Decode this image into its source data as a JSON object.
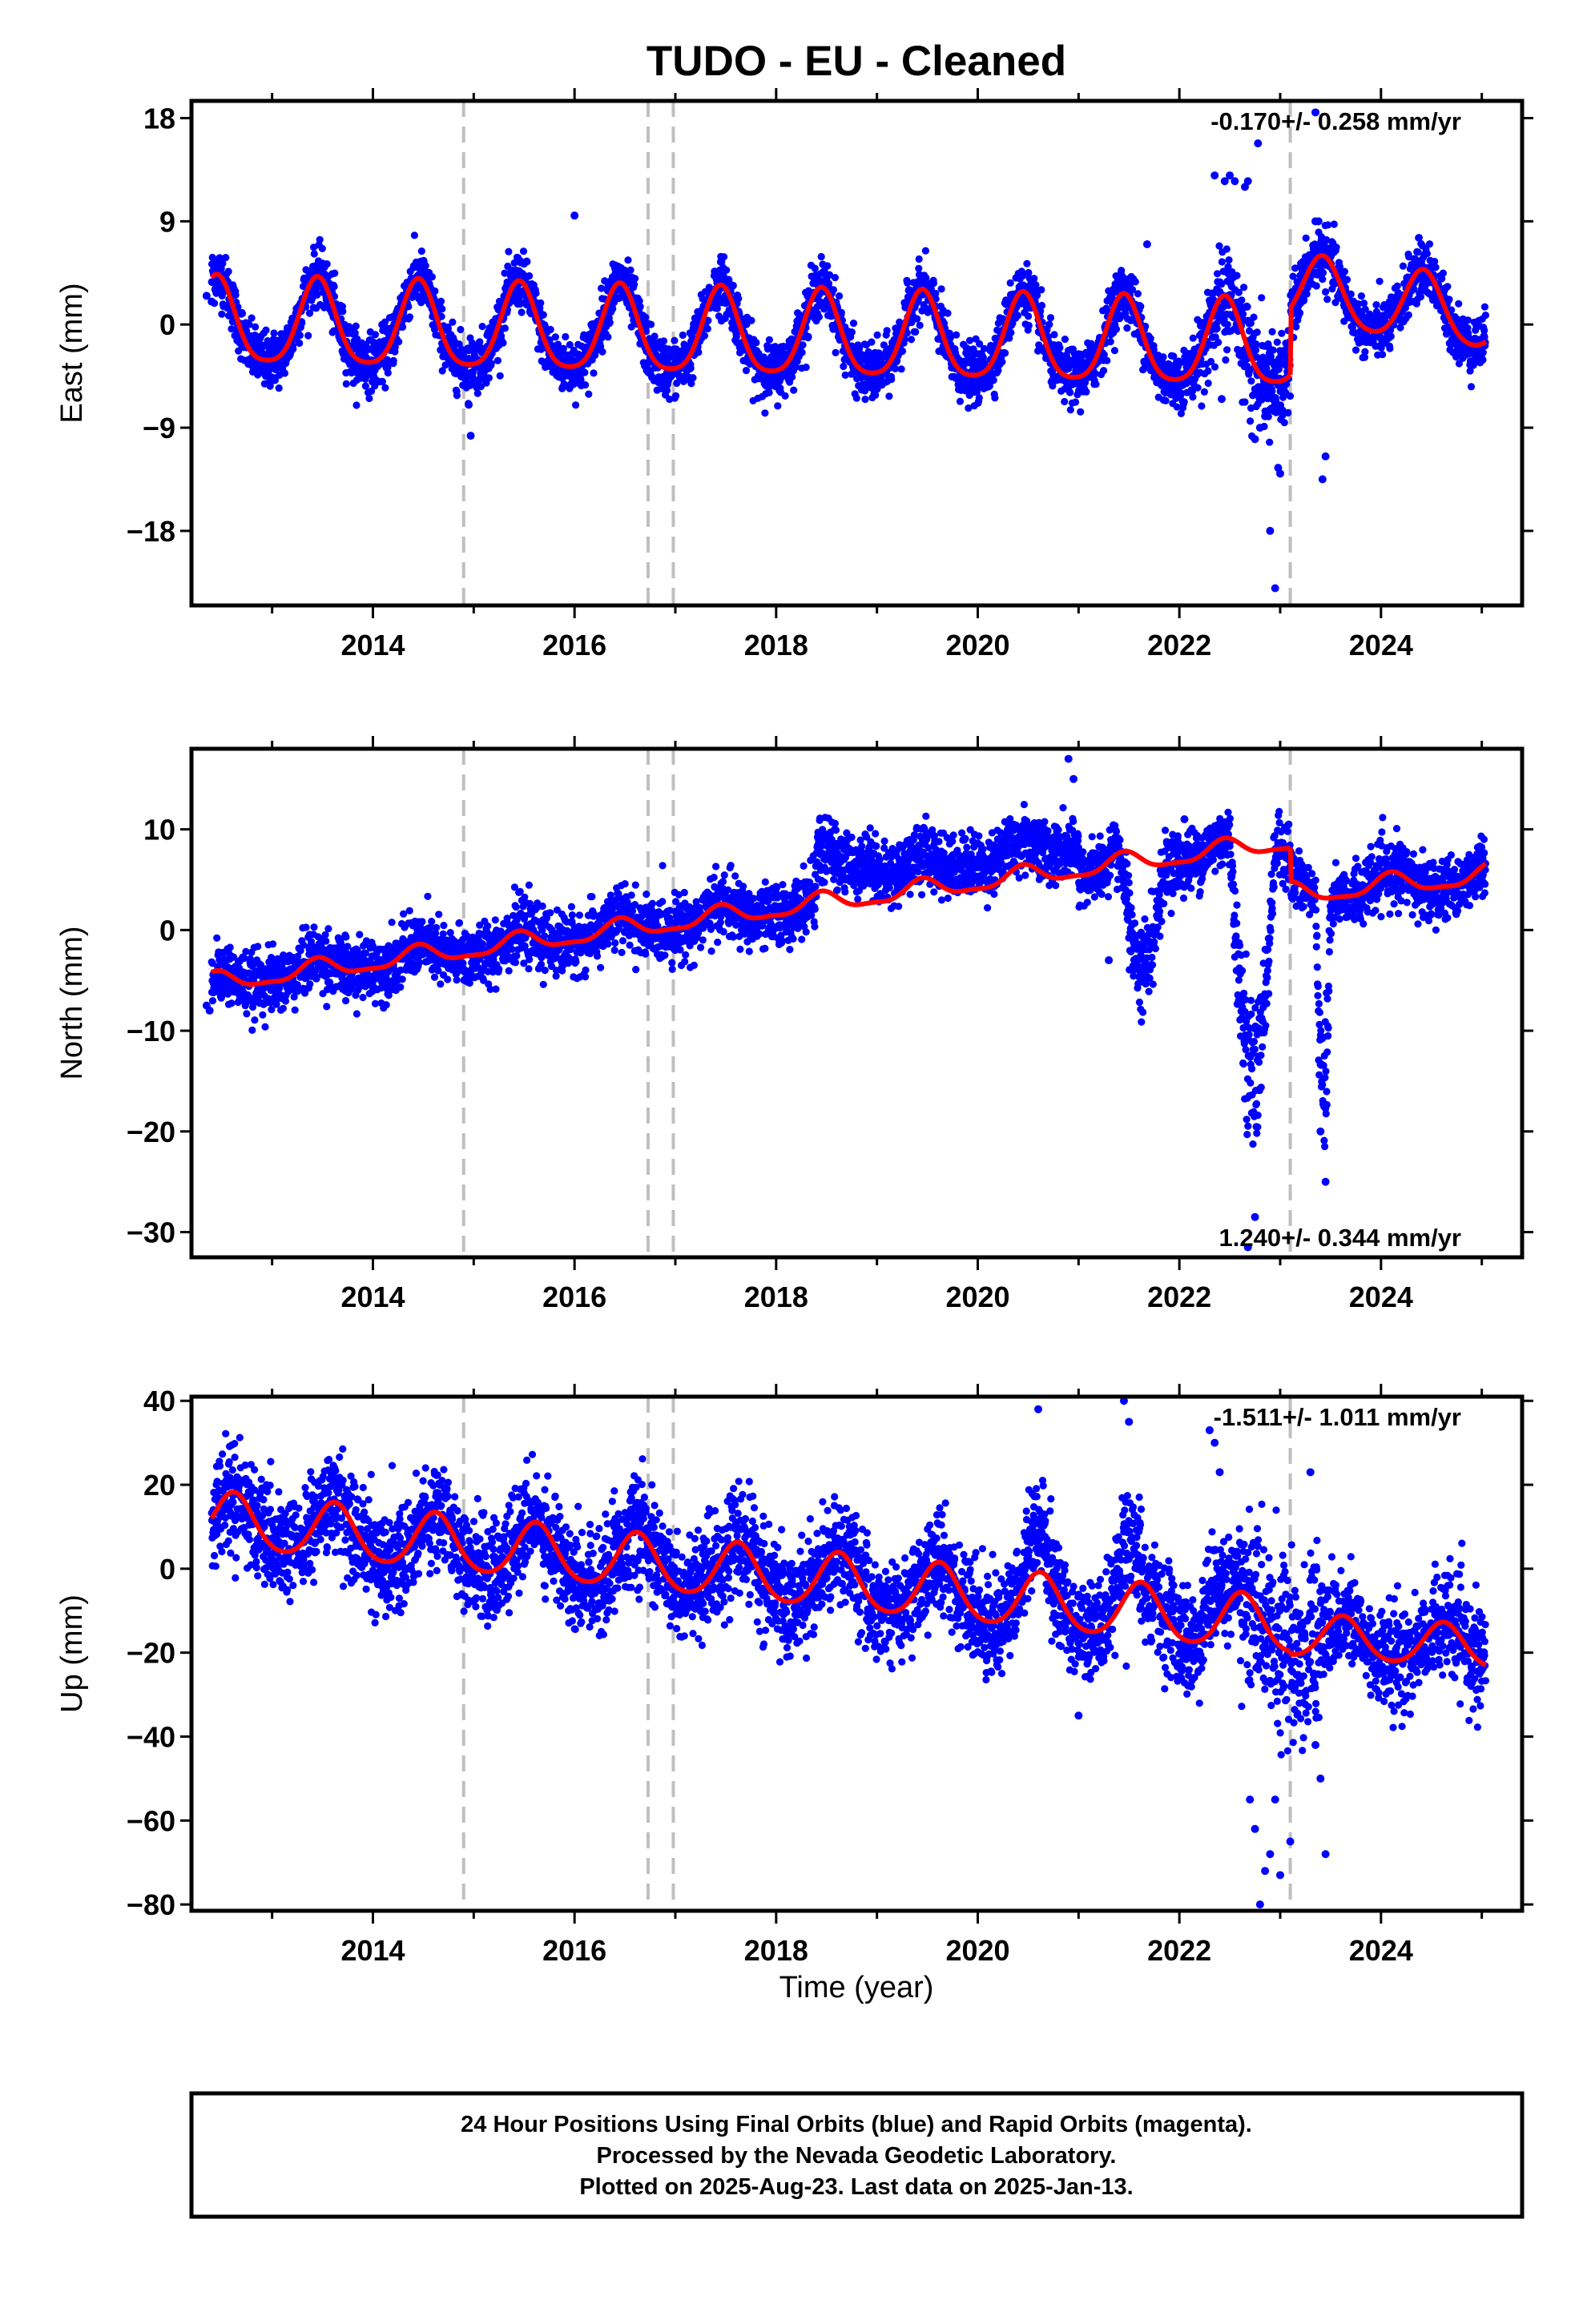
{
  "title": "TUDO  - EU - Cleaned",
  "xlabel": "Time (year)",
  "x_ticks": [
    "2014",
    "2016",
    "2018",
    "2020",
    "2022",
    "2024"
  ],
  "colors": {
    "final_orbits": "#0000ff",
    "rapid_orbits": "#ff00ff",
    "model": "#ff0000",
    "offset_lines": "#bfbfbf"
  },
  "footer": {
    "line1": "24 Hour Positions Using Final Orbits (blue) and Rapid Orbits (magenta).",
    "line2": "Processed by the Nevada Geodetic Laboratory.",
    "line3": "Plotted on 2025-Aug-23. Last data on 2025-Jan-13."
  },
  "chart_data": [
    {
      "type": "scatter",
      "name": "east",
      "ylabel": "East (mm)",
      "xlim": [
        2012.2,
        2025.4
      ],
      "ylim": [
        -24.5,
        19.5
      ],
      "y_ticks": [
        18,
        9,
        0,
        -9,
        -18
      ],
      "y_tick_labels": [
        "18",
        "9",
        "0",
        "−9",
        "−18"
      ],
      "rate_label": "-0.170+/- 0.258 mm/yr",
      "rate_position": "top-right",
      "offset_epochs": [
        2014.9,
        2016.73,
        2016.98,
        2023.1
      ],
      "data_range": [
        2012.4,
        2025.04
      ],
      "model": {
        "segments": [
          {
            "t0": 2012.4,
            "t1": 2023.1,
            "t_ref": 2012.4,
            "offset": 0.0,
            "rate": -0.2,
            "annual_amp": 3.7,
            "annual_phase_year": 2013.45,
            "semiannual_amp": 0.7,
            "end_offset": -2.0
          },
          {
            "t0": 2023.1,
            "t1": 2025.04,
            "t_ref": 2023.1,
            "offset": 3.0,
            "rate": -1.2,
            "annual_amp": 3.0,
            "annual_phase_year": 2024.42,
            "semiannual_amp": 0.4
          }
        ]
      },
      "scatter_sd": 1.2,
      "outliers": [
        {
          "x": 2012.35,
          "y": 2.5
        },
        {
          "x": 2012.4,
          "y": 2.0
        },
        {
          "x": 2014.95,
          "y": -7.0
        },
        {
          "x": 2014.97,
          "y": -9.7
        },
        {
          "x": 2016.0,
          "y": 9.5
        },
        {
          "x": 2022.35,
          "y": 13.0
        },
        {
          "x": 2022.45,
          "y": 12.5
        },
        {
          "x": 2022.5,
          "y": 13.0
        },
        {
          "x": 2022.55,
          "y": 12.5
        },
        {
          "x": 2022.68,
          "y": 12.5
        },
        {
          "x": 2022.78,
          "y": 15.8
        },
        {
          "x": 2022.9,
          "y": -18.0
        },
        {
          "x": 2022.95,
          "y": -23.0
        },
        {
          "x": 2022.75,
          "y": -10.0
        },
        {
          "x": 2022.8,
          "y": -9.0
        },
        {
          "x": 2022.85,
          "y": -8.0
        },
        {
          "x": 2022.98,
          "y": -12.5
        },
        {
          "x": 2023.0,
          "y": -13.0
        },
        {
          "x": 2023.35,
          "y": 18.5
        },
        {
          "x": 2023.38,
          "y": 9.0
        },
        {
          "x": 2023.42,
          "y": -13.5
        },
        {
          "x": 2023.45,
          "y": -11.5
        },
        {
          "x": 2023.35,
          "y": 9.0
        },
        {
          "x": 2021.68,
          "y": 7.0
        },
        {
          "x": 2022.65,
          "y": 12.0
        },
        {
          "x": 2022.42,
          "y": -6.5
        }
      ]
    },
    {
      "type": "scatter",
      "name": "north",
      "ylabel": "North (mm)",
      "xlim": [
        2012.2,
        2025.4
      ],
      "ylim": [
        -32.5,
        18.0
      ],
      "y_ticks": [
        10,
        0,
        -10,
        -20,
        -30
      ],
      "y_tick_labels": [
        "10",
        "0",
        "−10",
        "−20",
        "−30"
      ],
      "rate_label": "1.240+/- 0.344 mm/yr",
      "rate_position": "bottom-right",
      "offset_epochs": [
        2014.9,
        2016.73,
        2016.98,
        2023.1
      ],
      "data_range": [
        2012.4,
        2025.04
      ],
      "model": {
        "segments": [
          {
            "t0": 2012.4,
            "t1": 2023.1,
            "t_ref": 2012.4,
            "offset": -5.3,
            "rate": 1.02,
            "annual_amp": 0.9,
            "annual_phase_year": 2013.45,
            "semiannual_amp": 0.3,
            "end_offset": 8.8
          },
          {
            "t0": 2023.1,
            "t1": 2025.04,
            "t_ref": 2023.1,
            "offset": 3.5,
            "rate": 1.0,
            "annual_amp": 1.0,
            "annual_phase_year": 2024.1,
            "semiannual_amp": 0.3
          }
        ]
      },
      "scatter_sd": 1.5,
      "step_2018": {
        "x": 2018.4,
        "y_shift": 4.0
      },
      "dips": [
        {
          "t0": 2021.4,
          "t1": 2021.85,
          "depth": -14.0
        },
        {
          "t0": 2022.5,
          "t1": 2022.95,
          "depth": -30.0
        },
        {
          "t0": 2023.35,
          "t1": 2023.5,
          "depth": -27.0
        }
      ],
      "outliers": [
        {
          "x": 2012.35,
          "y": -7.5
        },
        {
          "x": 2012.38,
          "y": -8.0
        },
        {
          "x": 2020.9,
          "y": 17.0
        },
        {
          "x": 2020.95,
          "y": 15.0
        },
        {
          "x": 2022.68,
          "y": -31.5
        },
        {
          "x": 2022.75,
          "y": -28.5
        },
        {
          "x": 2023.45,
          "y": -25.0
        },
        {
          "x": 2023.4,
          "y": -20.0
        },
        {
          "x": 2021.3,
          "y": -3.0
        },
        {
          "x": 2022.05,
          "y": 11.0
        }
      ]
    },
    {
      "type": "scatter",
      "name": "up",
      "ylabel": "Up (mm)",
      "xlim": [
        2012.2,
        2025.4
      ],
      "ylim": [
        -81.5,
        41.0
      ],
      "y_ticks": [
        40,
        20,
        0,
        -20,
        -40,
        -60,
        -80
      ],
      "y_tick_labels": [
        "40",
        "20",
        "0",
        "−20",
        "−40",
        "−60",
        "−80"
      ],
      "rate_label": "-1.511+/- 1.011 mm/yr",
      "rate_position": "top-right",
      "offset_epochs": [
        2014.9,
        2016.73,
        2016.98,
        2023.1
      ],
      "data_range": [
        2012.4,
        2025.04
      ],
      "model": {
        "segments": [
          {
            "t0": 2012.4,
            "t1": 2023.1,
            "t_ref": 2012.4,
            "offset": 11.5,
            "rate": -1.9,
            "annual_amp": 6.5,
            "annual_phase_year": 2012.62,
            "semiannual_amp": 0.8,
            "end_offset": -14.0
          },
          {
            "t0": 2023.1,
            "t1": 2025.04,
            "t_ref": 2023.1,
            "offset": -16.0,
            "rate": -1.5,
            "annual_amp": 5.0,
            "annual_phase_year": 2023.62,
            "semiannual_amp": 0.6
          }
        ]
      },
      "scatter_sd": 6.0,
      "outliers": [
        {
          "x": 2020.6,
          "y": 38.0
        },
        {
          "x": 2021.45,
          "y": 40.0
        },
        {
          "x": 2021.5,
          "y": 35.0
        },
        {
          "x": 2022.3,
          "y": 33.0
        },
        {
          "x": 2022.35,
          "y": 30.0
        },
        {
          "x": 2022.8,
          "y": -80.0
        },
        {
          "x": 2022.85,
          "y": -72.0
        },
        {
          "x": 2022.9,
          "y": -68.0
        },
        {
          "x": 2023.0,
          "y": -73.0
        },
        {
          "x": 2022.75,
          "y": -62.0
        },
        {
          "x": 2022.7,
          "y": -55.0
        },
        {
          "x": 2022.95,
          "y": -55.0
        },
        {
          "x": 2023.45,
          "y": -68.0
        },
        {
          "x": 2023.4,
          "y": -50.0
        },
        {
          "x": 2023.35,
          "y": -42.0
        },
        {
          "x": 2023.1,
          "y": -65.0
        },
        {
          "x": 2022.4,
          "y": 23.0
        },
        {
          "x": 2023.3,
          "y": 23.0
        },
        {
          "x": 2021.0,
          "y": -35.0
        }
      ]
    }
  ]
}
